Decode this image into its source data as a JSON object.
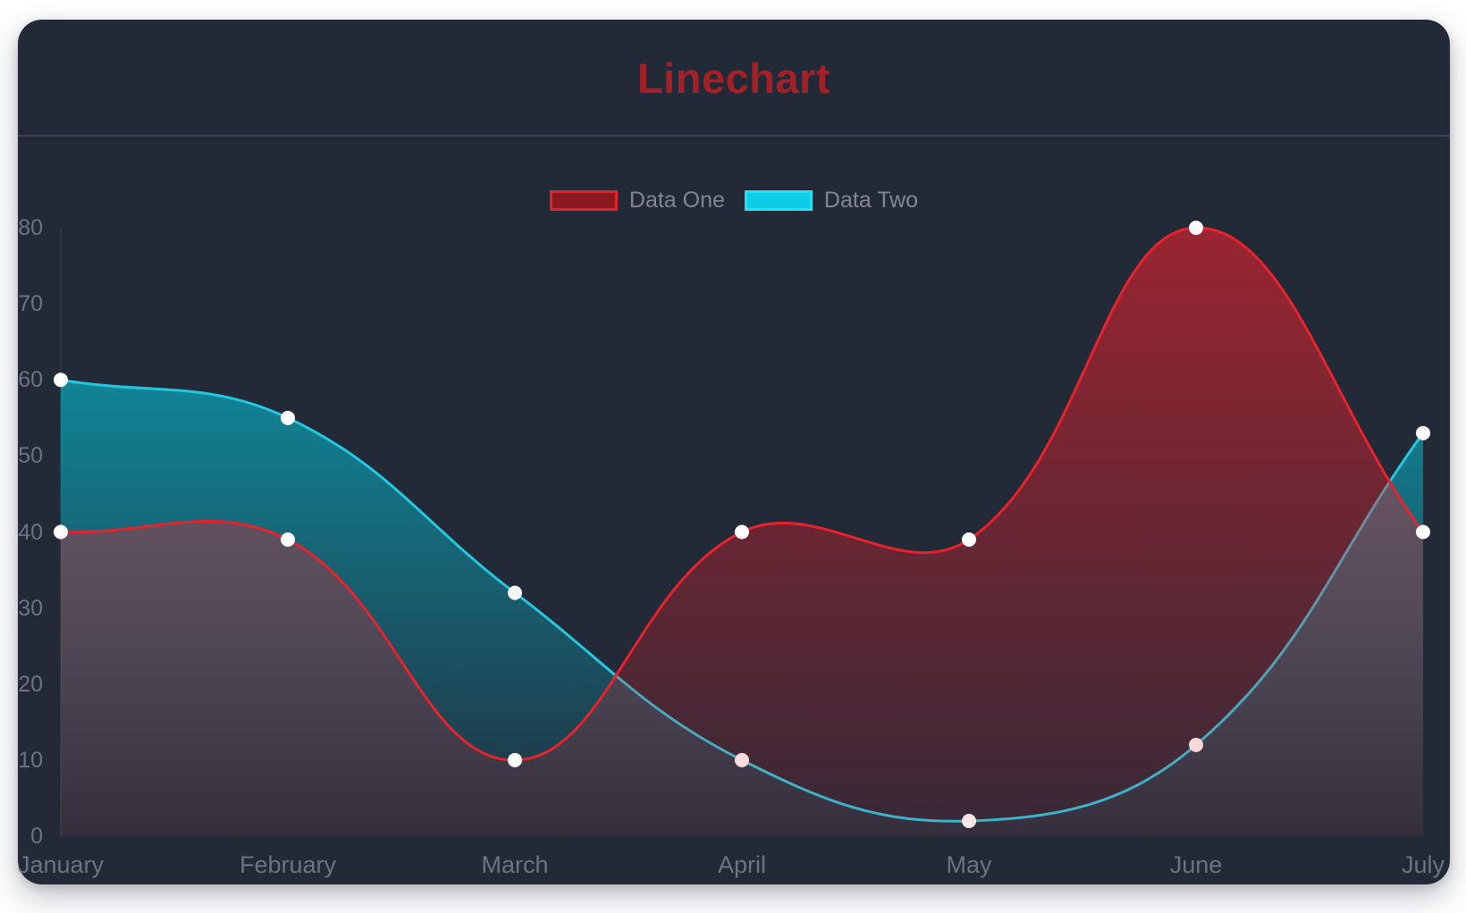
{
  "page": {
    "background": "#ffffff"
  },
  "card": {
    "background": "#222937",
    "divider_color": "#39425a"
  },
  "chart_data": {
    "type": "line",
    "title": "Linechart",
    "title_color": "#a42027",
    "categories": [
      "January",
      "February",
      "March",
      "April",
      "May",
      "June",
      "July"
    ],
    "series": [
      {
        "name": "Data One",
        "values": [
          40,
          39,
          10,
          40,
          39,
          80,
          40
        ],
        "line_color": "#e8222c",
        "legend_fill": "#8a1a20",
        "legend_border": "#e8222c",
        "area_top": "rgba(233,34,44,0.60)",
        "area_bottom": "rgba(233,34,44,0.10)"
      },
      {
        "name": "Data Two",
        "values": [
          60,
          55,
          32,
          10,
          2,
          12,
          53
        ],
        "line_color": "#25c7de",
        "legend_fill": "#0ecde8",
        "legend_border": "#2adef2",
        "area_top": "rgba(0,212,233,0.70)",
        "area_bottom": "rgba(0,212,233,0.04)"
      }
    ],
    "draw_order_back_to_front": [
      "Data Two",
      "Data One"
    ],
    "xlabel": "",
    "ylabel": "",
    "y_ticks": [
      0,
      10,
      20,
      30,
      40,
      50,
      60,
      70,
      80
    ],
    "ylim": [
      0,
      80
    ],
    "grid": "off",
    "legend_position": "top",
    "line_tension": 0.4,
    "point_color": "#ffffff",
    "point_radius": 8,
    "axis_line_color": "rgba(255,255,255,0.06)",
    "tick_color": "#6d7380",
    "legend_text_color": "#82878f"
  }
}
